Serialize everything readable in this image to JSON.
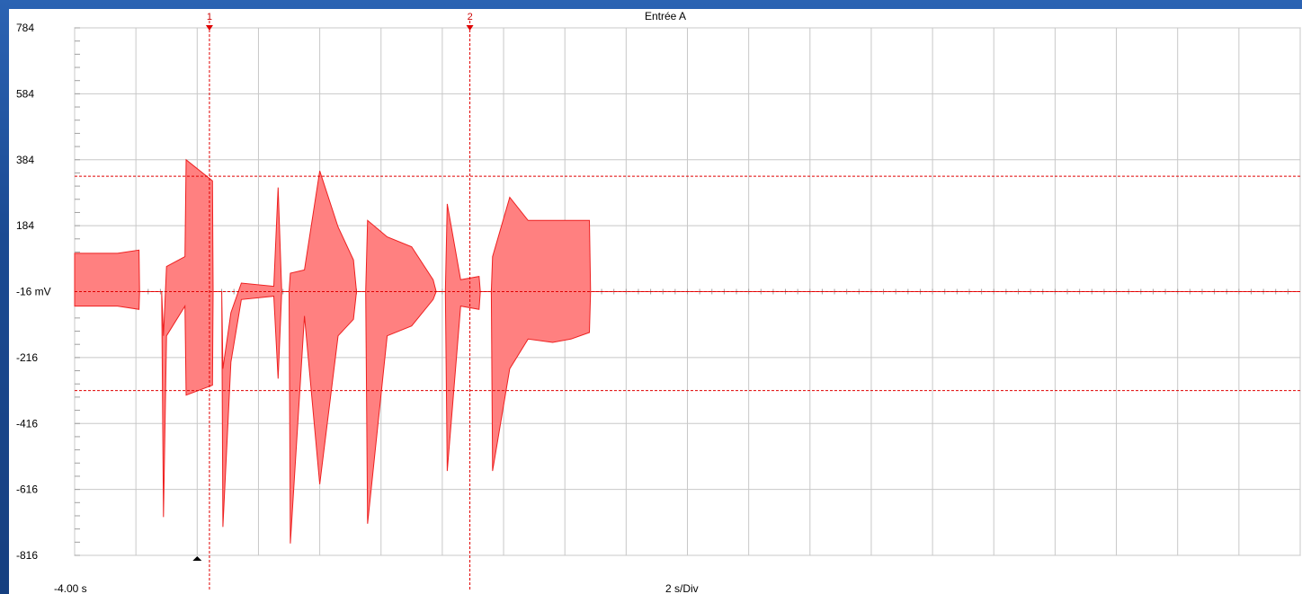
{
  "chart_data": {
    "type": "line",
    "title": "Entrée A",
    "xlabel": "2 s/Div",
    "x_start_label": "-4.00 s",
    "y_unit": "mV",
    "yticks": [
      784,
      584,
      384,
      184,
      -16,
      -216,
      -416,
      -616,
      -816
    ],
    "ylim": [
      -816,
      784
    ],
    "x_divisions": 20,
    "grid": true,
    "series_color": "#ff8080",
    "series_stroke": "#ee2020",
    "cursor_color": "#e00000",
    "cursors": [
      {
        "label": "1"
      },
      {
        "label": "2"
      }
    ],
    "envelope": [
      {
        "x": 0.0,
        "hi": 100,
        "lo": -60
      },
      {
        "x": 0.7,
        "hi": 100,
        "lo": -60
      },
      {
        "x": 1.05,
        "hi": 110,
        "lo": -70
      },
      {
        "x": 1.06,
        "hi": -16,
        "lo": -16
      },
      {
        "x": 1.42,
        "hi": -16,
        "lo": -16
      },
      {
        "x": 1.45,
        "hi": -150,
        "lo": -700
      },
      {
        "x": 1.5,
        "hi": 60,
        "lo": -150
      },
      {
        "x": 1.8,
        "hi": 90,
        "lo": -60
      },
      {
        "x": 1.82,
        "hi": 384,
        "lo": -330
      },
      {
        "x": 2.25,
        "hi": 320,
        "lo": -300
      },
      {
        "x": 2.26,
        "hi": -16,
        "lo": -16
      },
      {
        "x": 2.4,
        "hi": -16,
        "lo": -16
      },
      {
        "x": 2.42,
        "hi": -250,
        "lo": -730
      },
      {
        "x": 2.55,
        "hi": -80,
        "lo": -230
      },
      {
        "x": 2.72,
        "hi": 10,
        "lo": -40
      },
      {
        "x": 3.25,
        "hi": 0,
        "lo": -30
      },
      {
        "x": 3.32,
        "hi": 300,
        "lo": -280
      },
      {
        "x": 3.38,
        "hi": -16,
        "lo": -16
      },
      {
        "x": 3.5,
        "hi": -16,
        "lo": -16
      },
      {
        "x": 3.52,
        "hi": 40,
        "lo": -780
      },
      {
        "x": 3.75,
        "hi": 50,
        "lo": -90
      },
      {
        "x": 4.0,
        "hi": 350,
        "lo": -600
      },
      {
        "x": 4.3,
        "hi": 180,
        "lo": -150
      },
      {
        "x": 4.55,
        "hi": 80,
        "lo": -100
      },
      {
        "x": 4.6,
        "hi": -16,
        "lo": -16
      },
      {
        "x": 4.75,
        "hi": -16,
        "lo": -16
      },
      {
        "x": 4.78,
        "hi": 200,
        "lo": -720
      },
      {
        "x": 5.1,
        "hi": 150,
        "lo": -150
      },
      {
        "x": 5.5,
        "hi": 120,
        "lo": -120
      },
      {
        "x": 5.85,
        "hi": 20,
        "lo": -40
      },
      {
        "x": 5.9,
        "hi": -16,
        "lo": -16
      },
      {
        "x": 6.05,
        "hi": -16,
        "lo": -16
      },
      {
        "x": 6.08,
        "hi": 250,
        "lo": -560
      },
      {
        "x": 6.3,
        "hi": 20,
        "lo": -60
      },
      {
        "x": 6.6,
        "hi": 30,
        "lo": -70
      },
      {
        "x": 6.62,
        "hi": -16,
        "lo": -16
      },
      {
        "x": 6.8,
        "hi": -16,
        "lo": -16
      },
      {
        "x": 6.82,
        "hi": 90,
        "lo": -560
      },
      {
        "x": 7.1,
        "hi": 270,
        "lo": -250
      },
      {
        "x": 7.4,
        "hi": 200,
        "lo": -160
      },
      {
        "x": 7.8,
        "hi": 200,
        "lo": -170
      },
      {
        "x": 8.1,
        "hi": 200,
        "lo": -160
      },
      {
        "x": 8.4,
        "hi": 200,
        "lo": -140
      },
      {
        "x": 8.42,
        "hi": -16,
        "lo": -16
      },
      {
        "x": 20.0,
        "hi": -16,
        "lo": -16
      }
    ]
  }
}
